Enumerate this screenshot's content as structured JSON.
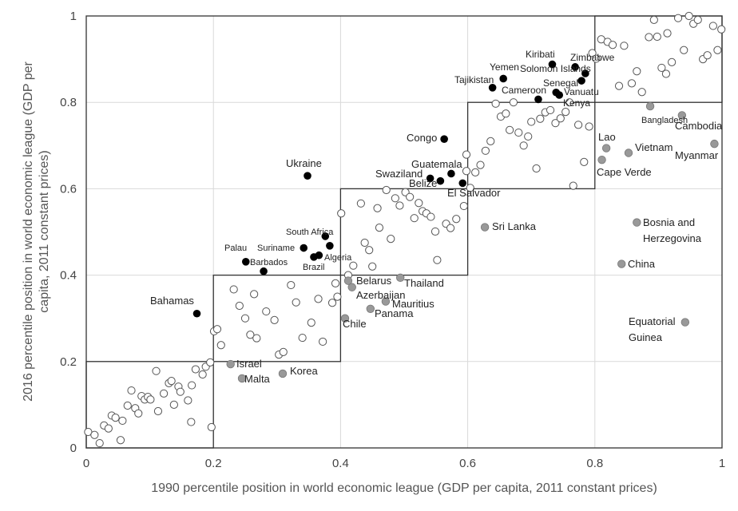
{
  "chart_data": {
    "type": "scatter",
    "xlabel": "1990 percentile position in world economic league (GDP per capita, 2011 constant prices)",
    "ylabel_line1": "2016 percentile position in world economic league (GDP per",
    "ylabel_line2": "capita, 2011 constant prices)",
    "xlim": [
      0,
      1
    ],
    "ylim": [
      0,
      1
    ],
    "x_ticks": [
      "0",
      "0.2",
      "0.4",
      "0.6",
      "0.8",
      "1"
    ],
    "y_ticks": [
      "0",
      "0.2",
      "0.4",
      "0.6",
      "0.8",
      "1"
    ],
    "grid": true,
    "quintile_boxes": [
      {
        "x0": 0.0,
        "x1": 0.2,
        "y0": 0.0,
        "y1": 0.2
      },
      {
        "x0": 0.2,
        "x1": 0.4,
        "y0": 0.2,
        "y1": 0.4
      },
      {
        "x0": 0.4,
        "x1": 0.6,
        "y0": 0.4,
        "y1": 0.6
      },
      {
        "x0": 0.6,
        "x1": 0.8,
        "y0": 0.6,
        "y1": 0.8
      },
      {
        "x0": 0.8,
        "x1": 1.0,
        "y0": 0.8,
        "y1": 1.0
      }
    ],
    "colors": {
      "filled_black": "#000000",
      "filled_grey": "#999999",
      "hollow_stroke": "#555555",
      "frame": "#333333",
      "grid": "#d9d9d9"
    },
    "labeled_black": [
      {
        "name": "Kiribati",
        "x": 0.733,
        "y": 0.888
      },
      {
        "name": "Zimbabwe",
        "x": 0.769,
        "y": 0.882
      },
      {
        "name": "Yemen",
        "x": 0.656,
        "y": 0.855
      },
      {
        "name": "Solomon Islands",
        "x": 0.785,
        "y": 0.867
      },
      {
        "name": "Tajikistan",
        "x": 0.639,
        "y": 0.834
      },
      {
        "name": "Senegal",
        "x": 0.779,
        "y": 0.85
      },
      {
        "name": "Cameroon",
        "x": 0.711,
        "y": 0.807
      },
      {
        "name": "Vanuatu",
        "x": 0.739,
        "y": 0.823
      },
      {
        "name": "Kenya",
        "x": 0.744,
        "y": 0.817
      },
      {
        "name": "Congo",
        "x": 0.563,
        "y": 0.715
      },
      {
        "name": "Ukraine",
        "x": 0.348,
        "y": 0.63
      },
      {
        "name": "Guatemala",
        "x": 0.574,
        "y": 0.635
      },
      {
        "name": "Swaziland",
        "x": 0.541,
        "y": 0.624
      },
      {
        "name": "Belize",
        "x": 0.557,
        "y": 0.618
      },
      {
        "name": "El Salvador",
        "x": 0.592,
        "y": 0.613
      },
      {
        "name": "South Africa",
        "x": 0.376,
        "y": 0.49
      },
      {
        "name": "Suriname",
        "x": 0.342,
        "y": 0.463
      },
      {
        "name": "Palau",
        "x": 0.251,
        "y": 0.431
      },
      {
        "name": "Algeria",
        "x": 0.366,
        "y": 0.446
      },
      {
        "name": "Brazil",
        "x": 0.383,
        "y": 0.468
      },
      {
        "name": "Barbados",
        "x": 0.279,
        "y": 0.409
      },
      {
        "name": "Bahamas",
        "x": 0.174,
        "y": 0.311
      }
    ],
    "extra_black": [
      {
        "x": 0.358,
        "y": 0.442
      }
    ],
    "labeled_grey": [
      {
        "name": "Bangladesh",
        "x": 0.887,
        "y": 0.791
      },
      {
        "name": "Cambodia",
        "x": 0.937,
        "y": 0.77
      },
      {
        "name": "Lao",
        "x": 0.818,
        "y": 0.694
      },
      {
        "name": "Vietnam",
        "x": 0.853,
        "y": 0.683
      },
      {
        "name": "Myanmar",
        "x": 0.988,
        "y": 0.704
      },
      {
        "name": "Cape Verde",
        "x": 0.811,
        "y": 0.667
      },
      {
        "name": "Sri Lanka",
        "x": 0.627,
        "y": 0.511
      },
      {
        "name": "Bosnia and Herzegovina",
        "x": 0.866,
        "y": 0.522
      },
      {
        "name": "China",
        "x": 0.842,
        "y": 0.426
      },
      {
        "name": "Belarus",
        "x": 0.412,
        "y": 0.387
      },
      {
        "name": "Azerbaijan",
        "x": 0.418,
        "y": 0.372
      },
      {
        "name": "Thailand",
        "x": 0.494,
        "y": 0.394
      },
      {
        "name": "Mauritius",
        "x": 0.471,
        "y": 0.339
      },
      {
        "name": "Panama",
        "x": 0.447,
        "y": 0.322
      },
      {
        "name": "Chile",
        "x": 0.407,
        "y": 0.3
      },
      {
        "name": "Equatorial Guinea",
        "x": 0.942,
        "y": 0.291
      },
      {
        "name": "Israel",
        "x": 0.227,
        "y": 0.194
      },
      {
        "name": "Malta",
        "x": 0.245,
        "y": 0.161
      },
      {
        "name": "Korea",
        "x": 0.309,
        "y": 0.172
      }
    ],
    "hollow": [
      [
        0.003,
        0.037
      ],
      [
        0.013,
        0.03
      ],
      [
        0.021,
        0.011
      ],
      [
        0.028,
        0.052
      ],
      [
        0.035,
        0.045
      ],
      [
        0.04,
        0.075
      ],
      [
        0.046,
        0.07
      ],
      [
        0.054,
        0.018
      ],
      [
        0.057,
        0.063
      ],
      [
        0.065,
        0.098
      ],
      [
        0.071,
        0.133
      ],
      [
        0.077,
        0.092
      ],
      [
        0.082,
        0.08
      ],
      [
        0.087,
        0.12
      ],
      [
        0.092,
        0.112
      ],
      [
        0.097,
        0.118
      ],
      [
        0.101,
        0.112
      ],
      [
        0.113,
        0.085
      ],
      [
        0.122,
        0.126
      ],
      [
        0.13,
        0.15
      ],
      [
        0.134,
        0.155
      ],
      [
        0.138,
        0.1
      ],
      [
        0.145,
        0.142
      ],
      [
        0.148,
        0.13
      ],
      [
        0.16,
        0.11
      ],
      [
        0.166,
        0.145
      ],
      [
        0.172,
        0.182
      ],
      [
        0.183,
        0.17
      ],
      [
        0.188,
        0.188
      ],
      [
        0.197,
        0.048
      ],
      [
        0.11,
        0.178
      ],
      [
        0.165,
        0.06
      ],
      [
        0.195,
        0.198
      ],
      [
        0.232,
        0.367
      ],
      [
        0.241,
        0.329
      ],
      [
        0.25,
        0.3
      ],
      [
        0.258,
        0.262
      ],
      [
        0.264,
        0.356
      ],
      [
        0.268,
        0.254
      ],
      [
        0.283,
        0.316
      ],
      [
        0.296,
        0.296
      ],
      [
        0.303,
        0.216
      ],
      [
        0.31,
        0.222
      ],
      [
        0.322,
        0.377
      ],
      [
        0.33,
        0.337
      ],
      [
        0.34,
        0.255
      ],
      [
        0.354,
        0.29
      ],
      [
        0.365,
        0.345
      ],
      [
        0.372,
        0.246
      ],
      [
        0.387,
        0.336
      ],
      [
        0.392,
        0.381
      ],
      [
        0.395,
        0.35
      ],
      [
        0.201,
        0.27
      ],
      [
        0.206,
        0.275
      ],
      [
        0.212,
        0.238
      ],
      [
        0.401,
        0.543
      ],
      [
        0.412,
        0.4
      ],
      [
        0.42,
        0.422
      ],
      [
        0.432,
        0.566
      ],
      [
        0.438,
        0.475
      ],
      [
        0.445,
        0.458
      ],
      [
        0.45,
        0.42
      ],
      [
        0.458,
        0.555
      ],
      [
        0.461,
        0.51
      ],
      [
        0.472,
        0.597
      ],
      [
        0.479,
        0.484
      ],
      [
        0.486,
        0.578
      ],
      [
        0.493,
        0.561
      ],
      [
        0.502,
        0.592
      ],
      [
        0.509,
        0.581
      ],
      [
        0.516,
        0.532
      ],
      [
        0.523,
        0.567
      ],
      [
        0.529,
        0.548
      ],
      [
        0.535,
        0.543
      ],
      [
        0.542,
        0.535
      ],
      [
        0.549,
        0.501
      ],
      [
        0.552,
        0.435
      ],
      [
        0.566,
        0.519
      ],
      [
        0.573,
        0.509
      ],
      [
        0.582,
        0.53
      ],
      [
        0.594,
        0.56
      ],
      [
        0.598,
        0.641
      ],
      [
        0.598,
        0.679
      ],
      [
        0.604,
        0.602
      ],
      [
        0.612,
        0.638
      ],
      [
        0.62,
        0.655
      ],
      [
        0.628,
        0.688
      ],
      [
        0.636,
        0.71
      ],
      [
        0.644,
        0.797
      ],
      [
        0.652,
        0.767
      ],
      [
        0.66,
        0.774
      ],
      [
        0.666,
        0.736
      ],
      [
        0.672,
        0.8
      ],
      [
        0.68,
        0.73
      ],
      [
        0.688,
        0.7
      ],
      [
        0.695,
        0.721
      ],
      [
        0.7,
        0.755
      ],
      [
        0.708,
        0.647
      ],
      [
        0.714,
        0.762
      ],
      [
        0.722,
        0.777
      ],
      [
        0.73,
        0.782
      ],
      [
        0.738,
        0.752
      ],
      [
        0.746,
        0.763
      ],
      [
        0.754,
        0.778
      ],
      [
        0.76,
        0.8
      ],
      [
        0.766,
        0.607
      ],
      [
        0.774,
        0.748
      ],
      [
        0.783,
        0.662
      ],
      [
        0.791,
        0.744
      ],
      [
        0.796,
        0.914
      ],
      [
        0.802,
        0.901
      ],
      [
        0.81,
        0.946
      ],
      [
        0.82,
        0.94
      ],
      [
        0.828,
        0.933
      ],
      [
        0.838,
        0.838
      ],
      [
        0.846,
        0.931
      ],
      [
        0.858,
        0.844
      ],
      [
        0.866,
        0.872
      ],
      [
        0.874,
        0.824
      ],
      [
        0.885,
        0.951
      ],
      [
        0.893,
        0.991
      ],
      [
        0.898,
        0.952
      ],
      [
        0.905,
        0.88
      ],
      [
        0.914,
        0.96
      ],
      [
        0.921,
        0.893
      ],
      [
        0.931,
        0.995
      ],
      [
        0.94,
        0.921
      ],
      [
        0.948,
        1.0
      ],
      [
        0.955,
        0.982
      ],
      [
        0.962,
        0.991
      ],
      [
        0.97,
        0.9
      ],
      [
        0.977,
        0.909
      ],
      [
        0.986,
        0.977
      ],
      [
        0.993,
        0.921
      ],
      [
        0.999,
        0.969
      ],
      [
        0.912,
        0.866
      ]
    ]
  }
}
